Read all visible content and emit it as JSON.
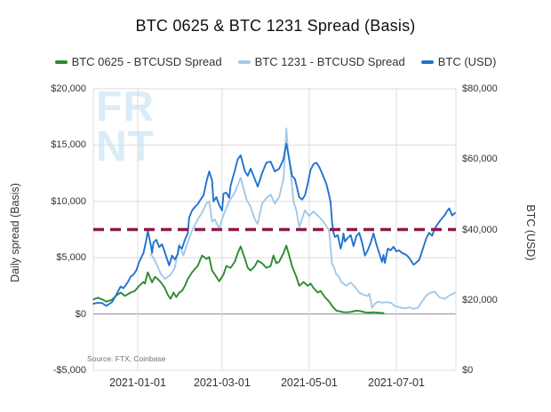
{
  "title": "BTC 0625 & BTC 1231 Spread (Basis)",
  "source_note": "Source: FTX, Coinbase",
  "watermark": {
    "line1": "FR",
    "line2": "NT"
  },
  "legend": [
    {
      "label": "BTC 0625 - BTCUSD Spread",
      "color": "#2e8b2e"
    },
    {
      "label": "BTC 1231 - BTCUSD Spread",
      "color": "#a3c9e8"
    },
    {
      "label": "BTC (USD)",
      "color": "#2272ce"
    }
  ],
  "colors": {
    "grid": "#dcdcdc",
    "zero_line": "#8c8c8c",
    "reference_dashed": "#8f1a46",
    "watermark": "#d9ecf8"
  },
  "axes": {
    "left": {
      "title": "Daily spread (Basis)",
      "ticks": [
        {
          "label": "$20,000",
          "value": 20000
        },
        {
          "label": "$15,000",
          "value": 15000
        },
        {
          "label": "$10,000",
          "value": 10000
        },
        {
          "label": "$5,000",
          "value": 5000
        },
        {
          "label": "$0",
          "value": 0
        },
        {
          "label": "-$5,000",
          "value": -5000
        }
      ]
    },
    "right": {
      "title": "BTC (USD)",
      "ticks": [
        {
          "label": "$80,000",
          "value": 80000
        },
        {
          "label": "$60,000",
          "value": 60000
        },
        {
          "label": "$40,000",
          "value": 40000
        },
        {
          "label": "$20,000",
          "value": 20000
        },
        {
          "label": "$0",
          "value": 0
        }
      ]
    },
    "x": {
      "ticks": [
        {
          "label": "2021-01-01",
          "day": 31
        },
        {
          "label": "2021-03-01",
          "day": 90
        },
        {
          "label": "2021-05-01",
          "day": 151
        },
        {
          "label": "2021-07-01",
          "day": 212
        }
      ]
    }
  },
  "chart_data": {
    "type": "line",
    "x_unit": "days since 2020-12-01",
    "x_range_days": [
      0,
      253
    ],
    "y_left_range": [
      -5000,
      20000
    ],
    "y_right_range": [
      0,
      80000
    ],
    "grid": "on",
    "legend_position": "top",
    "reference_line": {
      "axis": "right",
      "value": 40000,
      "style": "dashed",
      "color": "#8f1a46"
    },
    "series": [
      {
        "name": "BTC 1231 - BTCUSD Spread",
        "axis": "left",
        "color": "#a3c9e8",
        "points": [
          [
            40,
            5300
          ],
          [
            42,
            5000
          ],
          [
            45,
            4200
          ],
          [
            47,
            3600
          ],
          [
            50,
            3100
          ],
          [
            54,
            3500
          ],
          [
            57,
            4100
          ],
          [
            60,
            6200
          ],
          [
            63,
            5200
          ],
          [
            66,
            6400
          ],
          [
            69,
            7400
          ],
          [
            73,
            8400
          ],
          [
            76,
            9000
          ],
          [
            79,
            9800
          ],
          [
            81,
            10000
          ],
          [
            83,
            8200
          ],
          [
            85,
            8400
          ],
          [
            88,
            7600
          ],
          [
            91,
            8800
          ],
          [
            95,
            10000
          ],
          [
            99,
            10800
          ],
          [
            103,
            12100
          ],
          [
            107,
            10200
          ],
          [
            110,
            9500
          ],
          [
            113,
            8400
          ],
          [
            115,
            8000
          ],
          [
            118,
            9800
          ],
          [
            121,
            10300
          ],
          [
            124,
            10600
          ],
          [
            127,
            9800
          ],
          [
            130,
            10400
          ],
          [
            133,
            12000
          ],
          [
            134,
            14100
          ],
          [
            135,
            16500
          ],
          [
            136,
            14700
          ],
          [
            138,
            12700
          ],
          [
            140,
            10000
          ],
          [
            142,
            9200
          ],
          [
            144,
            7700
          ],
          [
            148,
            9200
          ],
          [
            151,
            8700
          ],
          [
            154,
            9100
          ],
          [
            158,
            8600
          ],
          [
            161,
            8200
          ],
          [
            163,
            7800
          ],
          [
            165,
            7400
          ],
          [
            166,
            5800
          ],
          [
            167,
            4400
          ],
          [
            168,
            4260
          ],
          [
            170,
            3500
          ],
          [
            172,
            3300
          ],
          [
            173,
            2900
          ],
          [
            177,
            2500
          ],
          [
            180,
            2800
          ],
          [
            183,
            2400
          ],
          [
            186,
            1900
          ],
          [
            189,
            1700
          ],
          [
            192,
            1600
          ],
          [
            193,
            1800
          ],
          [
            195,
            550
          ],
          [
            197,
            900
          ],
          [
            199,
            1100
          ],
          [
            202,
            1000
          ],
          [
            205,
            1050
          ],
          [
            208,
            1000
          ],
          [
            211,
            700
          ],
          [
            214,
            600
          ],
          [
            218,
            500
          ],
          [
            221,
            600
          ],
          [
            224,
            450
          ],
          [
            227,
            550
          ],
          [
            230,
            1100
          ],
          [
            233,
            1650
          ],
          [
            236,
            1900
          ],
          [
            239,
            1970
          ],
          [
            242,
            1500
          ],
          [
            246,
            1340
          ],
          [
            249,
            1650
          ],
          [
            251,
            1750
          ],
          [
            253,
            1900
          ]
        ]
      },
      {
        "name": "BTC 0625 - BTCUSD Spread",
        "axis": "left",
        "color": "#2e8b2e",
        "points": [
          [
            0,
            1300
          ],
          [
            3,
            1450
          ],
          [
            6,
            1300
          ],
          [
            9,
            1100
          ],
          [
            13,
            1260
          ],
          [
            16,
            1650
          ],
          [
            19,
            1900
          ],
          [
            22,
            1600
          ],
          [
            26,
            1900
          ],
          [
            29,
            2050
          ],
          [
            32,
            2500
          ],
          [
            35,
            2840
          ],
          [
            36,
            2700
          ],
          [
            38,
            3700
          ],
          [
            40,
            3100
          ],
          [
            41,
            2800
          ],
          [
            43,
            3300
          ],
          [
            45,
            3100
          ],
          [
            47,
            2840
          ],
          [
            50,
            2300
          ],
          [
            52,
            1700
          ],
          [
            54,
            1340
          ],
          [
            56,
            1900
          ],
          [
            58,
            1500
          ],
          [
            60,
            1900
          ],
          [
            62,
            2050
          ],
          [
            64,
            2500
          ],
          [
            66,
            3100
          ],
          [
            69,
            3700
          ],
          [
            71,
            4000
          ],
          [
            73,
            4260
          ],
          [
            76,
            5200
          ],
          [
            79,
            4900
          ],
          [
            81,
            5050
          ],
          [
            83,
            3860
          ],
          [
            85,
            3500
          ],
          [
            88,
            2900
          ],
          [
            91,
            3500
          ],
          [
            93,
            4260
          ],
          [
            96,
            4100
          ],
          [
            99,
            4650
          ],
          [
            101,
            5400
          ],
          [
            103,
            6000
          ],
          [
            106,
            4900
          ],
          [
            108,
            4100
          ],
          [
            110,
            3860
          ],
          [
            113,
            4260
          ],
          [
            115,
            4730
          ],
          [
            118,
            4500
          ],
          [
            121,
            4100
          ],
          [
            124,
            4260
          ],
          [
            126,
            5200
          ],
          [
            128,
            4500
          ],
          [
            130,
            4650
          ],
          [
            133,
            5400
          ],
          [
            135,
            6070
          ],
          [
            137,
            5200
          ],
          [
            139,
            4260
          ],
          [
            142,
            3300
          ],
          [
            144,
            2500
          ],
          [
            147,
            2840
          ],
          [
            150,
            2500
          ],
          [
            152,
            2700
          ],
          [
            154,
            2300
          ],
          [
            157,
            1900
          ],
          [
            159,
            2050
          ],
          [
            162,
            1500
          ],
          [
            165,
            1100
          ],
          [
            167,
            700
          ],
          [
            170,
            300
          ],
          [
            172,
            240
          ],
          [
            175,
            160
          ],
          [
            178,
            150
          ],
          [
            181,
            200
          ],
          [
            184,
            300
          ],
          [
            187,
            250
          ],
          [
            190,
            150
          ],
          [
            193,
            120
          ],
          [
            196,
            150
          ],
          [
            199,
            120
          ],
          [
            201,
            100
          ],
          [
            203,
            80
          ]
        ]
      },
      {
        "name": "BTC (USD)",
        "axis": "right",
        "color": "#2272ce",
        "points": [
          [
            0,
            18900
          ],
          [
            3,
            19200
          ],
          [
            6,
            19100
          ],
          [
            9,
            18300
          ],
          [
            13,
            19400
          ],
          [
            16,
            21500
          ],
          [
            19,
            23800
          ],
          [
            21,
            23300
          ],
          [
            24,
            25000
          ],
          [
            26,
            26600
          ],
          [
            28,
            27200
          ],
          [
            30,
            28400
          ],
          [
            32,
            30800
          ],
          [
            35,
            33300
          ],
          [
            37,
            37000
          ],
          [
            38,
            39600
          ],
          [
            40,
            35800
          ],
          [
            41,
            33300
          ],
          [
            42,
            36300
          ],
          [
            44,
            37100
          ],
          [
            46,
            35000
          ],
          [
            48,
            35800
          ],
          [
            50,
            33500
          ],
          [
            52,
            31000
          ],
          [
            53,
            29800
          ],
          [
            55,
            32600
          ],
          [
            57,
            31500
          ],
          [
            59,
            33000
          ],
          [
            60,
            35300
          ],
          [
            62,
            34600
          ],
          [
            64,
            37100
          ],
          [
            66,
            38900
          ],
          [
            67,
            43400
          ],
          [
            69,
            45400
          ],
          [
            71,
            46400
          ],
          [
            73,
            47200
          ],
          [
            75,
            48500
          ],
          [
            77,
            49700
          ],
          [
            79,
            53500
          ],
          [
            81,
            56500
          ],
          [
            83,
            54000
          ],
          [
            84,
            48000
          ],
          [
            86,
            49200
          ],
          [
            88,
            47000
          ],
          [
            90,
            45400
          ],
          [
            91,
            50200
          ],
          [
            93,
            50500
          ],
          [
            95,
            49000
          ],
          [
            96,
            52500
          ],
          [
            99,
            56800
          ],
          [
            101,
            60000
          ],
          [
            103,
            61100
          ],
          [
            106,
            56500
          ],
          [
            108,
            55300
          ],
          [
            110,
            57300
          ],
          [
            113,
            54300
          ],
          [
            115,
            52200
          ],
          [
            118,
            56000
          ],
          [
            121,
            59000
          ],
          [
            124,
            59300
          ],
          [
            127,
            56500
          ],
          [
            130,
            57300
          ],
          [
            133,
            60000
          ],
          [
            134,
            62300
          ],
          [
            135,
            64400
          ],
          [
            136,
            62300
          ],
          [
            139,
            55300
          ],
          [
            141,
            54300
          ],
          [
            144,
            49200
          ],
          [
            146,
            48500
          ],
          [
            148,
            49700
          ],
          [
            150,
            53000
          ],
          [
            152,
            57000
          ],
          [
            154,
            58600
          ],
          [
            156,
            59000
          ],
          [
            158,
            57800
          ],
          [
            160,
            56000
          ],
          [
            163,
            53000
          ],
          [
            165,
            49700
          ],
          [
            166,
            47700
          ],
          [
            167,
            42000
          ],
          [
            168,
            39100
          ],
          [
            169,
            37900
          ],
          [
            171,
            38400
          ],
          [
            173,
            34600
          ],
          [
            174,
            36000
          ],
          [
            175,
            38900
          ],
          [
            176,
            36600
          ],
          [
            178,
            37600
          ],
          [
            180,
            38400
          ],
          [
            182,
            35300
          ],
          [
            184,
            38100
          ],
          [
            186,
            39100
          ],
          [
            188,
            36300
          ],
          [
            190,
            32600
          ],
          [
            192,
            34100
          ],
          [
            194,
            36300
          ],
          [
            196,
            38900
          ],
          [
            198,
            35800
          ],
          [
            200,
            33300
          ],
          [
            202,
            30800
          ],
          [
            203,
            32800
          ],
          [
            204,
            30500
          ],
          [
            206,
            34600
          ],
          [
            208,
            34100
          ],
          [
            210,
            35100
          ],
          [
            212,
            33800
          ],
          [
            214,
            34100
          ],
          [
            216,
            33300
          ],
          [
            218,
            33000
          ],
          [
            220,
            32400
          ],
          [
            222,
            31300
          ],
          [
            224,
            30000
          ],
          [
            226,
            30600
          ],
          [
            228,
            31400
          ],
          [
            230,
            33800
          ],
          [
            233,
            37600
          ],
          [
            235,
            39100
          ],
          [
            237,
            38200
          ],
          [
            239,
            40400
          ],
          [
            241,
            41600
          ],
          [
            243,
            42700
          ],
          [
            246,
            44200
          ],
          [
            247,
            45000
          ],
          [
            249,
            46000
          ],
          [
            251,
            44000
          ],
          [
            253,
            44700
          ]
        ]
      }
    ]
  }
}
